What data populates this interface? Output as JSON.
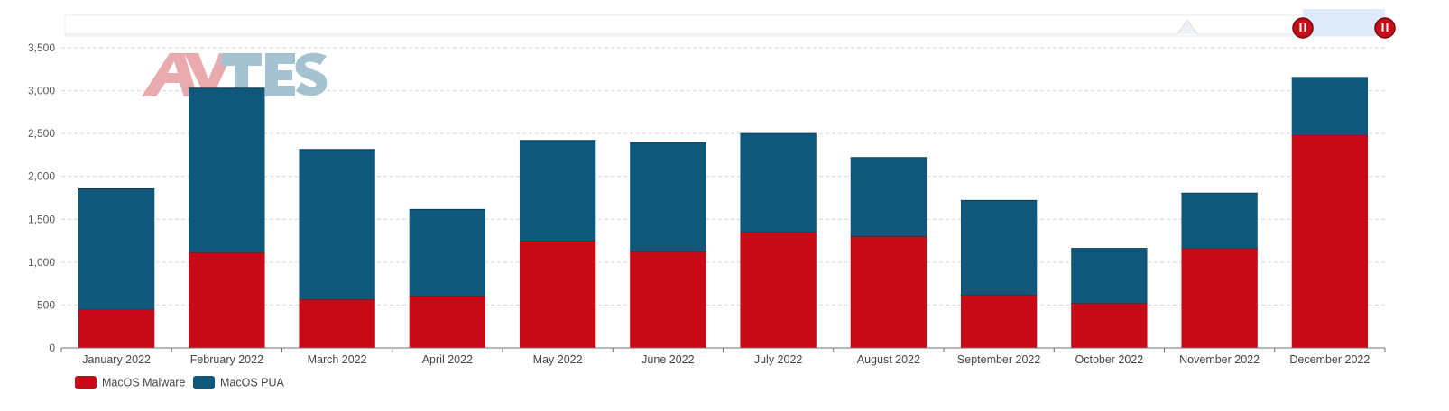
{
  "chart_data": {
    "type": "bar",
    "stacked": true,
    "title": "",
    "xlabel": "",
    "ylabel": "",
    "categories": [
      "January 2022",
      "February 2022",
      "March 2022",
      "April 2022",
      "May 2022",
      "June 2022",
      "July 2022",
      "August 2022",
      "September 2022",
      "October 2022",
      "November 2022",
      "December 2022"
    ],
    "series": [
      {
        "name": "MacOS Malware",
        "color": "#c80a18",
        "values": [
          445,
          1110,
          565,
          605,
          1250,
          1125,
          1350,
          1300,
          620,
          520,
          1160,
          2480
        ]
      },
      {
        "name": "MacOS PUA",
        "color": "#0f587c",
        "values": [
          1410,
          1920,
          1750,
          1010,
          1170,
          1270,
          1150,
          920,
          1100,
          640,
          645,
          675
        ]
      }
    ],
    "ylim": [
      0,
      3500
    ],
    "yticks": [
      0,
      500,
      1000,
      1500,
      2000,
      2500,
      3000,
      3500
    ],
    "ytick_labels": [
      "0",
      "500",
      "1,000",
      "1,500",
      "2,000",
      "2,500",
      "3,000",
      "3,500"
    ],
    "grid": true,
    "legend_position": "bottom-left"
  },
  "watermark": {
    "text": "AV-TEST",
    "colors": [
      "#e6a1a5",
      "#9bbccc"
    ]
  },
  "zoom_slider": {
    "fill_color": "#dce8fb",
    "range_start": 0.94,
    "range_end": 1.0,
    "handle_color": "#c20f1a"
  }
}
